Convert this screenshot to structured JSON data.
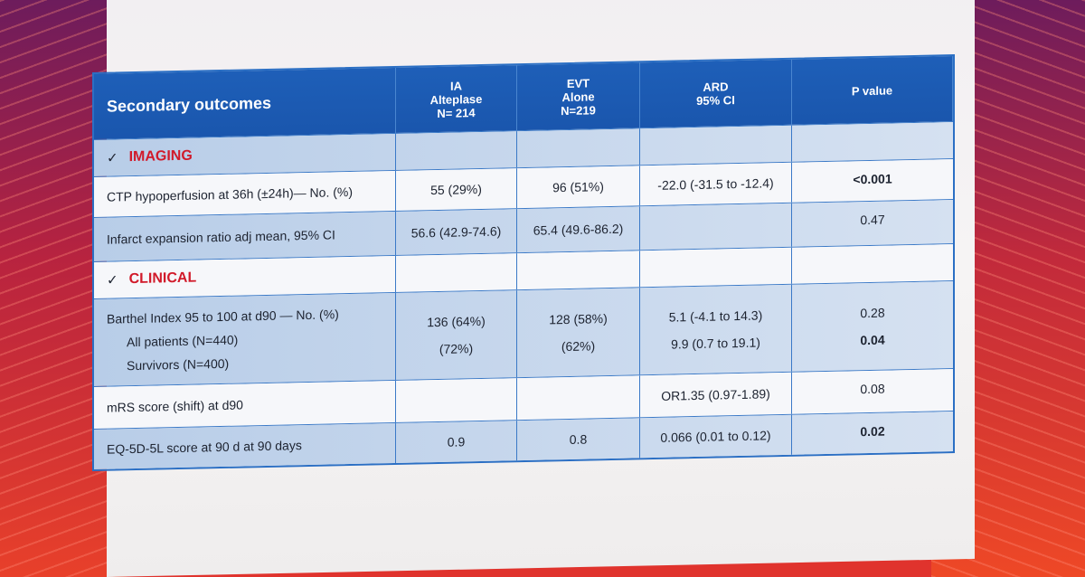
{
  "header": {
    "title": "Secondary outcomes",
    "col1": [
      "IA",
      "Alteplase",
      "N= 214"
    ],
    "col2": [
      "EVT",
      "Alone",
      "N=219"
    ],
    "col3": [
      "ARD",
      "95% CI"
    ],
    "col4": "P value"
  },
  "imaging": {
    "check": "✓",
    "label": "IMAGING",
    "ctp": {
      "label": "CTP hypoperfusion at 36h (±24h)— No. (%)",
      "ia": "55 (29%)",
      "evt": "96 (51%)",
      "ard": "-22.0 (-31.5 to -12.4)",
      "p": "<0.001"
    },
    "infarct": {
      "label": "Infarct expansion ratio  adj mean, 95% CI",
      "ia": "56.6 (42.9-74.6)",
      "evt": "65.4 (49.6-86.2)",
      "ard": "",
      "p": "0.47"
    }
  },
  "clinical": {
    "check": "✓",
    "label": "CLINICAL",
    "barthel": {
      "label": "Barthel Index 95 to 100 at d90 — No. (%)",
      "sub1": "All patients (N=440)",
      "sub2": "Survivors (N=400)",
      "ia1": "136 (64%)",
      "ia2": "(72%)",
      "evt1": "128 (58%)",
      "evt2": "(62%)",
      "ard1": "5.1 (-4.1 to 14.3)",
      "ard2": "9.9  (0.7 to 19.1)",
      "p1": "0.28",
      "p2": "0.04"
    },
    "mrs": {
      "label": "mRS score (shift) at d90",
      "ia": "",
      "evt": "",
      "ard": "OR1.35 (0.97-1.89)",
      "p": "0.08"
    },
    "eq": {
      "label": "EQ-5D-5L score at 90 d at 90 days",
      "ia": "0.9",
      "evt": "0.8",
      "ard": "0.066 (0.01 to 0.12)",
      "p": "0.02"
    }
  },
  "colors": {
    "header": "#1e5fb8",
    "accent": "#d11a2a",
    "shade": "#c5d6ec"
  }
}
